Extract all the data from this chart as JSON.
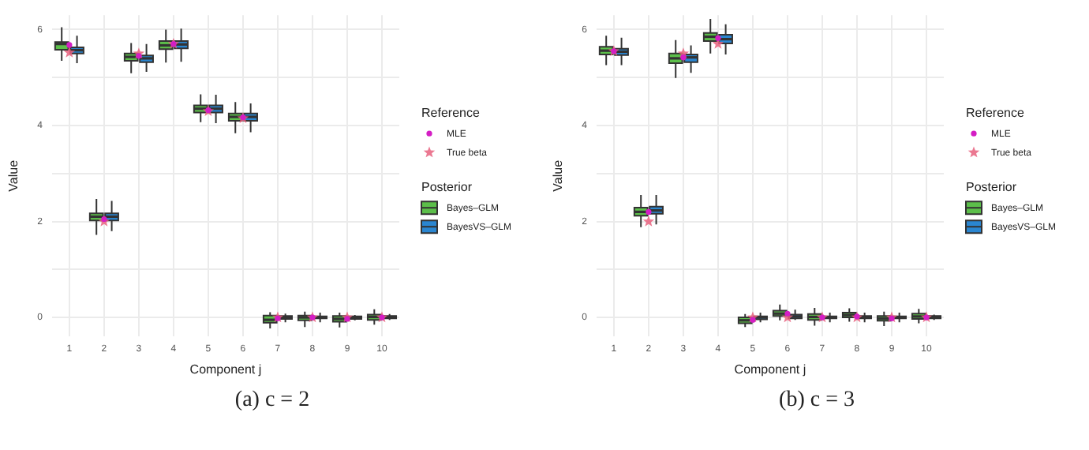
{
  "chart_data": [
    {
      "type": "box",
      "xlabel": "Component j",
      "ylabel": "Value",
      "legend": "right",
      "grid": true,
      "categories": [
        "1",
        "2",
        "3",
        "4",
        "5",
        "6",
        "7",
        "8",
        "9",
        "10"
      ],
      "ylim": [
        -0.4,
        6.3
      ],
      "yticks": [
        0,
        {
          "value": 1,
          "label": null
        },
        2,
        {
          "value": 3,
          "label": null
        },
        4,
        {
          "value": 5,
          "label": null
        },
        6
      ],
      "annotations": [
        "Reference",
        "Posterior",
        "(a) c = 2"
      ],
      "series": [
        {
          "name": "Bayes–GLM",
          "type": "box",
          "color": "#5cbf4a",
          "boxes": [
            {
              "low": 5.35,
              "q1": 5.58,
              "median": 5.7,
              "q3": 5.74,
              "high": 6.05
            },
            {
              "low": 1.72,
              "q1": 2.02,
              "median": 2.1,
              "q3": 2.17,
              "high": 2.47
            },
            {
              "low": 5.09,
              "q1": 5.35,
              "median": 5.43,
              "q3": 5.5,
              "high": 5.72
            },
            {
              "low": 5.31,
              "q1": 5.59,
              "median": 5.67,
              "q3": 5.76,
              "high": 6.0
            },
            {
              "low": 4.07,
              "q1": 4.27,
              "median": 4.35,
              "q3": 4.42,
              "high": 4.65
            },
            {
              "low": 3.84,
              "q1": 4.1,
              "median": 4.18,
              "q3": 4.25,
              "high": 4.49
            },
            {
              "low": -0.23,
              "q1": -0.11,
              "median": -0.05,
              "q3": 0.04,
              "high": 0.11
            },
            {
              "low": -0.2,
              "q1": -0.06,
              "median": 0,
              "q3": 0.04,
              "high": 0.12
            },
            {
              "low": -0.21,
              "q1": -0.09,
              "median": -0.03,
              "q3": 0.03,
              "high": 0.1
            },
            {
              "low": -0.15,
              "q1": -0.05,
              "median": 0.01,
              "q3": 0.06,
              "high": 0.17
            }
          ]
        },
        {
          "name": "BayesVS–GLM",
          "type": "box",
          "color": "#2a86d1",
          "boxes": [
            {
              "low": 5.3,
              "q1": 5.5,
              "median": 5.57,
              "q3": 5.63,
              "high": 5.87
            },
            {
              "low": 1.8,
              "q1": 2.02,
              "median": 2.1,
              "q3": 2.17,
              "high": 2.43
            },
            {
              "low": 5.12,
              "q1": 5.32,
              "median": 5.4,
              "q3": 5.46,
              "high": 5.7
            },
            {
              "low": 5.33,
              "q1": 5.61,
              "median": 5.69,
              "q3": 5.76,
              "high": 6.02
            },
            {
              "low": 4.05,
              "q1": 4.27,
              "median": 4.35,
              "q3": 4.42,
              "high": 4.64
            },
            {
              "low": 3.86,
              "q1": 4.1,
              "median": 4.18,
              "q3": 4.25,
              "high": 4.46
            },
            {
              "low": -0.1,
              "q1": -0.03,
              "median": 0,
              "q3": 0.03,
              "high": 0.08
            },
            {
              "low": -0.1,
              "q1": -0.02,
              "median": 0,
              "q3": 0.02,
              "high": 0.1
            },
            {
              "low": -0.06,
              "q1": -0.03,
              "median": 0,
              "q3": 0.02,
              "high": 0.05
            },
            {
              "low": -0.05,
              "q1": -0.02,
              "median": 0.01,
              "q3": 0.03,
              "high": 0.07
            }
          ]
        },
        {
          "name": "True beta",
          "type": "scatter",
          "marker": "star",
          "color": "#e8607e",
          "x": [
            "1",
            "2",
            "3",
            "4",
            "5",
            "6",
            "7",
            "8",
            "9",
            "10"
          ],
          "values": [
            5.52,
            2.0,
            5.5,
            5.7,
            4.3,
            4.15,
            0,
            0,
            0,
            0
          ]
        },
        {
          "name": "MLE",
          "type": "scatter",
          "marker": "circle",
          "color": "#d41ec4",
          "x": [
            "1",
            "2",
            "3",
            "4",
            "5",
            "6",
            "7",
            "8",
            "9",
            "10"
          ],
          "values": [
            5.68,
            2.05,
            5.45,
            5.7,
            4.32,
            4.17,
            -0.02,
            0,
            -0.03,
            0
          ]
        }
      ]
    },
    {
      "type": "box",
      "xlabel": "Component j",
      "ylabel": "Value",
      "legend": "right",
      "grid": true,
      "categories": [
        "1",
        "2",
        "3",
        "4",
        "5",
        "6",
        "7",
        "8",
        "9",
        "10"
      ],
      "ylim": [
        -0.4,
        6.3
      ],
      "yticks": [
        0,
        {
          "value": 1,
          "label": null
        },
        2,
        {
          "value": 3,
          "label": null
        },
        4,
        {
          "value": 5,
          "label": null
        },
        6
      ],
      "annotations": [
        "Reference",
        "Posterior",
        "(b) c = 3"
      ],
      "series": [
        {
          "name": "Bayes–GLM",
          "type": "box",
          "color": "#5cbf4a",
          "boxes": [
            {
              "low": 5.26,
              "q1": 5.48,
              "median": 5.56,
              "q3": 5.64,
              "high": 5.87
            },
            {
              "low": 1.88,
              "q1": 2.12,
              "median": 2.2,
              "q3": 2.29,
              "high": 2.55
            },
            {
              "low": 4.99,
              "q1": 5.3,
              "median": 5.4,
              "q3": 5.5,
              "high": 5.78
            },
            {
              "low": 5.5,
              "q1": 5.76,
              "median": 5.85,
              "q3": 5.93,
              "high": 6.22
            },
            {
              "low": -0.2,
              "q1": -0.12,
              "median": -0.06,
              "q3": 0.0,
              "high": 0.07
            },
            {
              "low": -0.06,
              "q1": 0.03,
              "median": 0.08,
              "q3": 0.14,
              "high": 0.27
            },
            {
              "low": -0.17,
              "q1": -0.05,
              "median": 0.01,
              "q3": 0.07,
              "high": 0.2
            },
            {
              "low": -0.09,
              "q1": 0.0,
              "median": 0.05,
              "q3": 0.1,
              "high": 0.19
            },
            {
              "low": -0.18,
              "q1": -0.07,
              "median": -0.02,
              "q3": 0.03,
              "high": 0.12
            },
            {
              "low": -0.12,
              "q1": -0.03,
              "median": 0.02,
              "q3": 0.08,
              "high": 0.18
            }
          ]
        },
        {
          "name": "BayesVS–GLM",
          "type": "box",
          "color": "#2a86d1",
          "boxes": [
            {
              "low": 5.26,
              "q1": 5.47,
              "median": 5.54,
              "q3": 5.6,
              "high": 5.83
            },
            {
              "low": 1.94,
              "q1": 2.16,
              "median": 2.23,
              "q3": 2.31,
              "high": 2.55
            },
            {
              "low": 5.1,
              "q1": 5.32,
              "median": 5.42,
              "q3": 5.48,
              "high": 5.67
            },
            {
              "low": 5.48,
              "q1": 5.71,
              "median": 5.8,
              "q3": 5.89,
              "high": 6.11
            },
            {
              "low": -0.1,
              "q1": -0.04,
              "median": 0,
              "q3": 0.02,
              "high": 0.1
            },
            {
              "low": -0.05,
              "q1": -0.02,
              "median": 0.02,
              "q3": 0.06,
              "high": 0.16
            },
            {
              "low": -0.1,
              "q1": -0.02,
              "median": 0,
              "q3": 0.02,
              "high": 0.1
            },
            {
              "low": -0.1,
              "q1": -0.02,
              "median": 0,
              "q3": 0.03,
              "high": 0.1
            },
            {
              "low": -0.1,
              "q1": -0.02,
              "median": 0,
              "q3": 0.02,
              "high": 0.1
            },
            {
              "low": -0.05,
              "q1": -0.02,
              "median": 0.01,
              "q3": 0.03,
              "high": 0.06
            }
          ]
        },
        {
          "name": "True beta",
          "type": "scatter",
          "marker": "star",
          "color": "#e8607e",
          "x": [
            "1",
            "2",
            "3",
            "4",
            "5",
            "6",
            "7",
            "8",
            "9",
            "10"
          ],
          "values": [
            5.55,
            2.0,
            5.5,
            5.7,
            0,
            0,
            0,
            0,
            0,
            0
          ]
        },
        {
          "name": "MLE",
          "type": "scatter",
          "marker": "circle",
          "color": "#d41ec4",
          "x": [
            "1",
            "2",
            "3",
            "4",
            "5",
            "6",
            "7",
            "8",
            "9",
            "10"
          ],
          "values": [
            5.55,
            2.2,
            5.42,
            5.82,
            -0.05,
            0.08,
            0,
            0.02,
            -0.02,
            0
          ]
        }
      ]
    }
  ]
}
